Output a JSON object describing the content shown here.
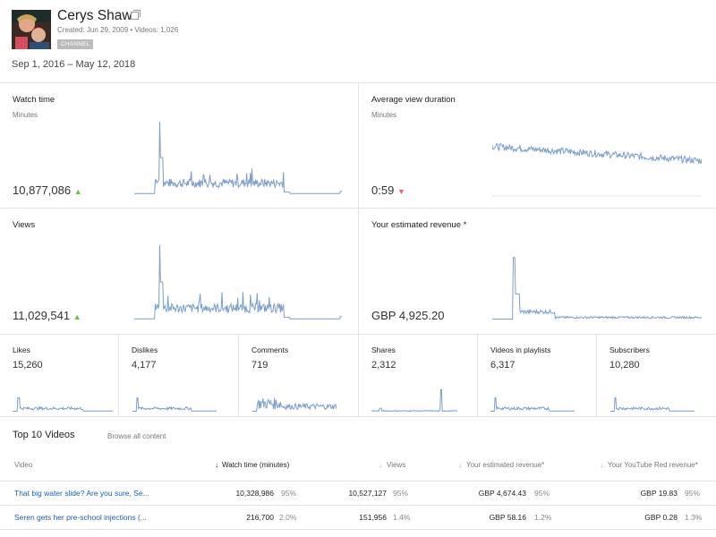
{
  "channel": {
    "name": "Cerys Shaw",
    "meta": "Created: Jun 29, 2009  •  Videos: 1,026",
    "badge": "CHANNEL"
  },
  "date_range": "Sep 1, 2016 – May 12, 2018",
  "cards": {
    "watch_time": {
      "title": "Watch time",
      "sub": "Minutes",
      "value": "10,877,086",
      "trend": "up"
    },
    "avg_view": {
      "title": "Average view duration",
      "sub": "Minutes",
      "value": "0:59",
      "trend": "down"
    },
    "views": {
      "title": "Views",
      "value": "11,029,541",
      "trend": "up"
    },
    "revenue": {
      "title": "Your estimated revenue *",
      "value": "GBP 4,925.20"
    }
  },
  "small_cards": [
    {
      "title": "Likes",
      "value": "15,260"
    },
    {
      "title": "Dislikes",
      "value": "4,177"
    },
    {
      "title": "Comments",
      "value": "719"
    },
    {
      "title": "Shares",
      "value": "2,312"
    },
    {
      "title": "Videos in playlists",
      "value": "6,317"
    },
    {
      "title": "Subscribers",
      "value": "10,280"
    }
  ],
  "icons": {
    "trend_up": "▲",
    "trend_down": "▼",
    "sort_desc": "↓"
  },
  "colors": {
    "sparkline": "#7b9ecb",
    "trend_up": "#6cbf4e",
    "trend_down": "#e06b6b",
    "link": "#1a5fb4"
  },
  "top_videos": {
    "heading": "Top 10 Videos",
    "browse": "Browse all content",
    "columns": {
      "video": "Video",
      "watch": "Watch time (minutes)",
      "views": "Views",
      "revenue": "Your estimated revenue*",
      "red": "Your YouTube Red revenue*"
    },
    "rows": [
      {
        "title": "That big water slide? Are you sure, Se...",
        "watch": "10,328,986",
        "watch_pct": "95%",
        "views": "10,527,127",
        "views_pct": "95%",
        "revenue": "GBP 4,674.43",
        "revenue_pct": "95%",
        "red": "GBP 19.83",
        "red_pct": "95%"
      },
      {
        "title": "Seren gets her pre-school injections (...",
        "watch": "216,700",
        "watch_pct": "2.0%",
        "views": "151,956",
        "views_pct": "1.4%",
        "revenue": "GBP 58.16",
        "revenue_pct": "1.2%",
        "red": "GBP 0.28",
        "red_pct": "1.3%"
      }
    ]
  }
}
